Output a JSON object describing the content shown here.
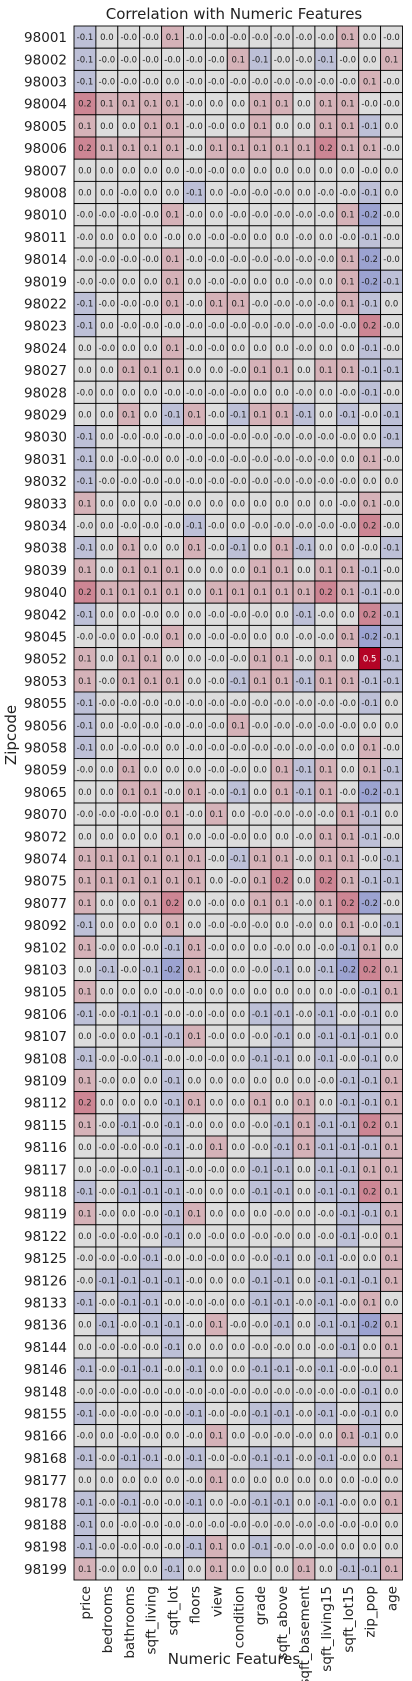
{
  "chart_data": {
    "type": "heatmap",
    "title": "Correlation with Numeric Features",
    "xlabel": "Numeric Features",
    "ylabel": "Zipcode",
    "columns": [
      "price",
      "bedrooms",
      "bathrooms",
      "sqft_living",
      "sqft_lot",
      "floors",
      "view",
      "condition",
      "grade",
      "sqft_above",
      "sqft_basement",
      "sqft_living15",
      "sqft_lot15",
      "zip_pop",
      "age"
    ],
    "rows": [
      "98001",
      "98002",
      "98003",
      "98004",
      "98005",
      "98006",
      "98007",
      "98008",
      "98010",
      "98011",
      "98014",
      "98019",
      "98022",
      "98023",
      "98024",
      "98027",
      "98028",
      "98029",
      "98030",
      "98031",
      "98032",
      "98033",
      "98034",
      "98038",
      "98039",
      "98040",
      "98042",
      "98045",
      "98052",
      "98053",
      "98055",
      "98056",
      "98058",
      "98059",
      "98065",
      "98070",
      "98072",
      "98074",
      "98075",
      "98077",
      "98092",
      "98102",
      "98103",
      "98105",
      "98106",
      "98107",
      "98108",
      "98109",
      "98112",
      "98115",
      "98116",
      "98117",
      "98118",
      "98119",
      "98122",
      "98125",
      "98126",
      "98133",
      "98136",
      "98144",
      "98146",
      "98148",
      "98155",
      "98166",
      "98168",
      "98177",
      "98178",
      "98188",
      "98198",
      "98199"
    ],
    "values": [
      [
        "-0.1",
        "0.0",
        "-0.0",
        "-0.0",
        "0.1",
        "-0.0",
        "-0.0",
        "-0.0",
        "-0.0",
        "-0.0",
        "-0.0",
        "-0.0",
        "0.1",
        "0.0",
        "-0.0"
      ],
      [
        "-0.1",
        "-0.0",
        "-0.0",
        "-0.0",
        "-0.0",
        "-0.0",
        "-0.0",
        "0.1",
        "-0.1",
        "-0.0",
        "-0.0",
        "-0.1",
        "-0.0",
        "0.0",
        "0.1"
      ],
      [
        "-0.1",
        "-0.0",
        "-0.0",
        "-0.0",
        "0.0",
        "-0.0",
        "-0.0",
        "-0.0",
        "-0.0",
        "-0.0",
        "-0.0",
        "-0.0",
        "-0.0",
        "0.1",
        "-0.0"
      ],
      [
        "0.2",
        "0.1",
        "0.1",
        "0.1",
        "0.1",
        "-0.0",
        "0.0",
        "0.0",
        "0.1",
        "0.1",
        "0.0",
        "0.1",
        "0.1",
        "-0.0",
        "-0.0"
      ],
      [
        "0.1",
        "0.0",
        "0.0",
        "0.1",
        "0.1",
        "-0.0",
        "-0.0",
        "0.0",
        "0.1",
        "0.0",
        "0.0",
        "0.1",
        "0.1",
        "-0.1",
        "0.0"
      ],
      [
        "0.2",
        "0.1",
        "0.1",
        "0.1",
        "0.1",
        "-0.0",
        "0.1",
        "0.1",
        "0.1",
        "0.1",
        "0.1",
        "0.2",
        "0.1",
        "0.1",
        "-0.0"
      ],
      [
        "0.0",
        "0.0",
        "0.0",
        "0.0",
        "0.0",
        "-0.0",
        "-0.0",
        "0.0",
        "0.0",
        "0.0",
        "0.0",
        "0.0",
        "0.0",
        "-0.0",
        "0.0"
      ],
      [
        "0.0",
        "0.0",
        "-0.0",
        "0.0",
        "0.0",
        "-0.1",
        "0.0",
        "-0.0",
        "-0.0",
        "-0.0",
        "0.0",
        "-0.0",
        "-0.0",
        "-0.1",
        "0.0"
      ],
      [
        "-0.0",
        "-0.0",
        "-0.0",
        "-0.0",
        "0.1",
        "-0.0",
        "0.0",
        "-0.0",
        "-0.0",
        "-0.0",
        "-0.0",
        "-0.0",
        "0.1",
        "-0.2",
        "-0.0"
      ],
      [
        "-0.0",
        "0.0",
        "0.0",
        "0.0",
        "-0.0",
        "0.0",
        "-0.0",
        "-0.0",
        "0.0",
        "0.0",
        "-0.0",
        "0.0",
        "-0.0",
        "-0.1",
        "-0.0"
      ],
      [
        "-0.0",
        "-0.0",
        "-0.0",
        "-0.0",
        "0.1",
        "-0.0",
        "-0.0",
        "-0.0",
        "-0.0",
        "-0.0",
        "-0.0",
        "-0.0",
        "0.1",
        "-0.2",
        "-0.0"
      ],
      [
        "-0.0",
        "-0.0",
        "0.0",
        "0.0",
        "0.1",
        "0.0",
        "-0.0",
        "-0.0",
        "0.0",
        "0.0",
        "-0.0",
        "0.0",
        "0.1",
        "-0.2",
        "-0.1"
      ],
      [
        "-0.1",
        "-0.0",
        "-0.0",
        "-0.0",
        "0.1",
        "-0.0",
        "0.1",
        "0.1",
        "-0.0",
        "-0.0",
        "-0.0",
        "-0.0",
        "0.1",
        "-0.1",
        "0.0"
      ],
      [
        "-0.1",
        "0.0",
        "-0.0",
        "-0.0",
        "-0.0",
        "-0.0",
        "-0.0",
        "-0.0",
        "-0.0",
        "-0.0",
        "-0.0",
        "-0.0",
        "-0.0",
        "0.2",
        "-0.0"
      ],
      [
        "0.0",
        "-0.0",
        "0.0",
        "0.0",
        "0.1",
        "-0.0",
        "-0.0",
        "0.0",
        "0.0",
        "0.0",
        "-0.0",
        "0.0",
        "0.0",
        "-0.1",
        "-0.0"
      ],
      [
        "0.0",
        "0.0",
        "0.1",
        "0.1",
        "0.1",
        "0.0",
        "0.0",
        "-0.0",
        "0.1",
        "0.1",
        "0.0",
        "0.1",
        "0.1",
        "-0.1",
        "-0.1"
      ],
      [
        "-0.0",
        "0.0",
        "0.0",
        "0.0",
        "-0.0",
        "-0.0",
        "-0.0",
        "-0.0",
        "0.0",
        "0.0",
        "-0.0",
        "0.0",
        "-0.0",
        "-0.1",
        "-0.0"
      ],
      [
        "0.0",
        "0.0",
        "0.1",
        "0.0",
        "-0.1",
        "0.1",
        "-0.0",
        "-0.1",
        "0.1",
        "0.1",
        "-0.1",
        "0.0",
        "-0.1",
        "-0.0",
        "-0.1"
      ],
      [
        "-0.1",
        "0.0",
        "-0.0",
        "-0.0",
        "-0.0",
        "-0.0",
        "-0.0",
        "-0.0",
        "-0.0",
        "-0.0",
        "-0.0",
        "-0.0",
        "-0.0",
        "0.0",
        "-0.1"
      ],
      [
        "-0.1",
        "0.0",
        "-0.0",
        "-0.0",
        "0.0",
        "-0.0",
        "-0.0",
        "-0.0",
        "-0.0",
        "-0.0",
        "-0.0",
        "-0.0",
        "0.0",
        "0.1",
        "-0.0"
      ],
      [
        "-0.1",
        "-0.0",
        "-0.0",
        "-0.0",
        "-0.0",
        "-0.0",
        "-0.0",
        "-0.0",
        "-0.0",
        "-0.0",
        "-0.0",
        "-0.0",
        "-0.0",
        "0.0",
        "0.0"
      ],
      [
        "0.1",
        "0.0",
        "0.0",
        "0.0",
        "-0.0",
        "0.0",
        "0.0",
        "0.0",
        "0.0",
        "0.0",
        "0.0",
        "0.0",
        "-0.0",
        "0.1",
        "-0.0"
      ],
      [
        "-0.0",
        "0.0",
        "-0.0",
        "-0.0",
        "-0.0",
        "-0.1",
        "-0.0",
        "0.0",
        "-0.0",
        "-0.0",
        "-0.0",
        "-0.0",
        "-0.0",
        "0.2",
        "-0.0"
      ],
      [
        "-0.1",
        "0.0",
        "0.1",
        "0.0",
        "0.0",
        "0.1",
        "-0.0",
        "-0.1",
        "0.0",
        "0.1",
        "-0.1",
        "0.0",
        "0.0",
        "-0.0",
        "-0.1"
      ],
      [
        "0.1",
        "0.0",
        "0.1",
        "0.1",
        "0.1",
        "0.0",
        "0.0",
        "0.0",
        "0.1",
        "0.1",
        "0.0",
        "0.1",
        "0.1",
        "-0.1",
        "-0.0"
      ],
      [
        "0.2",
        "0.1",
        "0.1",
        "0.1",
        "0.1",
        "0.0",
        "0.1",
        "0.1",
        "0.1",
        "0.1",
        "0.1",
        "0.2",
        "0.1",
        "-0.1",
        "-0.0"
      ],
      [
        "-0.1",
        "0.0",
        "0.0",
        "-0.0",
        "0.0",
        "0.0",
        "-0.0",
        "-0.0",
        "-0.0",
        "0.0",
        "-0.1",
        "-0.0",
        "0.0",
        "0.2",
        "-0.1"
      ],
      [
        "-0.0",
        "-0.0",
        "0.0",
        "-0.0",
        "0.1",
        "0.0",
        "-0.0",
        "-0.0",
        "0.0",
        "0.0",
        "-0.0",
        "-0.0",
        "0.1",
        "-0.2",
        "-0.1"
      ],
      [
        "0.1",
        "0.0",
        "0.1",
        "0.1",
        "0.0",
        "0.0",
        "-0.0",
        "-0.0",
        "0.1",
        "0.1",
        "-0.0",
        "0.1",
        "0.0",
        "0.5",
        "-0.1"
      ],
      [
        "0.1",
        "-0.0",
        "0.1",
        "0.1",
        "0.1",
        "0.0",
        "-0.0",
        "-0.1",
        "0.1",
        "0.1",
        "-0.1",
        "0.1",
        "0.1",
        "-0.1",
        "-0.1"
      ],
      [
        "-0.1",
        "-0.0",
        "-0.0",
        "-0.0",
        "-0.0",
        "-0.0",
        "-0.0",
        "-0.0",
        "-0.0",
        "-0.0",
        "-0.0",
        "-0.0",
        "-0.0",
        "-0.1",
        "0.0"
      ],
      [
        "-0.1",
        "0.0",
        "-0.0",
        "-0.0",
        "-0.0",
        "-0.0",
        "-0.0",
        "0.1",
        "-0.0",
        "-0.0",
        "-0.0",
        "-0.0",
        "-0.0",
        "0.0",
        "0.0"
      ],
      [
        "-0.1",
        "0.0",
        "-0.0",
        "-0.0",
        "0.0",
        "-0.0",
        "-0.0",
        "-0.0",
        "-0.0",
        "-0.0",
        "-0.0",
        "-0.0",
        "0.0",
        "0.1",
        "-0.0"
      ],
      [
        "-0.0",
        "0.0",
        "0.1",
        "0.0",
        "0.0",
        "0.0",
        "-0.0",
        "-0.0",
        "0.0",
        "0.1",
        "-0.1",
        "0.1",
        "0.0",
        "0.1",
        "-0.1"
      ],
      [
        "0.0",
        "0.0",
        "0.1",
        "0.1",
        "-0.0",
        "0.1",
        "-0.0",
        "-0.1",
        "0.0",
        "0.1",
        "-0.1",
        "0.1",
        "-0.0",
        "-0.2",
        "-0.1"
      ],
      [
        "-0.0",
        "-0.0",
        "-0.0",
        "-0.0",
        "0.1",
        "-0.0",
        "0.1",
        "0.0",
        "-0.0",
        "-0.0",
        "-0.0",
        "-0.0",
        "0.1",
        "-0.1",
        "0.0"
      ],
      [
        "0.0",
        "0.0",
        "0.0",
        "0.0",
        "0.1",
        "0.0",
        "-0.0",
        "-0.0",
        "0.0",
        "0.0",
        "-0.0",
        "0.1",
        "0.1",
        "-0.1",
        "-0.0"
      ],
      [
        "0.1",
        "0.1",
        "0.1",
        "0.1",
        "0.1",
        "0.1",
        "-0.0",
        "-0.1",
        "0.1",
        "0.1",
        "-0.0",
        "0.1",
        "0.1",
        "-0.0",
        "-0.1"
      ],
      [
        "0.1",
        "0.1",
        "0.1",
        "0.1",
        "0.1",
        "0.1",
        "0.0",
        "-0.0",
        "0.1",
        "0.2",
        "0.0",
        "0.2",
        "0.1",
        "-0.1",
        "-0.1"
      ],
      [
        "0.1",
        "0.0",
        "0.0",
        "0.1",
        "0.2",
        "0.0",
        "-0.0",
        "0.0",
        "0.1",
        "0.1",
        "-0.0",
        "0.1",
        "0.2",
        "-0.2",
        "-0.0"
      ],
      [
        "-0.1",
        "0.0",
        "0.0",
        "0.0",
        "0.1",
        "0.0",
        "-0.0",
        "-0.0",
        "-0.0",
        "0.0",
        "-0.0",
        "0.0",
        "0.1",
        "-0.0",
        "-0.1"
      ],
      [
        "0.1",
        "-0.0",
        "0.0",
        "-0.0",
        "-0.1",
        "0.1",
        "-0.0",
        "0.0",
        "0.0",
        "-0.0",
        "0.0",
        "-0.0",
        "-0.1",
        "0.1",
        "0.0"
      ],
      [
        "0.0",
        "-0.1",
        "-0.0",
        "-0.1",
        "-0.2",
        "0.1",
        "-0.0",
        "0.0",
        "-0.0",
        "-0.1",
        "0.0",
        "-0.1",
        "-0.2",
        "0.2",
        "0.1"
      ],
      [
        "0.1",
        "0.0",
        "0.0",
        "0.0",
        "-0.0",
        "-0.0",
        "0.0",
        "0.0",
        "0.0",
        "0.0",
        "0.0",
        "0.0",
        "-0.0",
        "-0.1",
        "0.1"
      ],
      [
        "-0.1",
        "-0.0",
        "-0.1",
        "-0.1",
        "-0.0",
        "-0.0",
        "-0.0",
        "0.0",
        "-0.1",
        "-0.1",
        "-0.0",
        "-0.1",
        "-0.0",
        "-0.1",
        "0.0"
      ],
      [
        "0.0",
        "-0.0",
        "0.0",
        "-0.1",
        "-0.1",
        "0.1",
        "-0.0",
        "0.0",
        "-0.0",
        "-0.1",
        "0.0",
        "-0.1",
        "-0.1",
        "-0.1",
        "0.0"
      ],
      [
        "-0.1",
        "-0.0",
        "-0.0",
        "-0.1",
        "-0.0",
        "-0.0",
        "-0.0",
        "0.0",
        "-0.1",
        "-0.1",
        "0.0",
        "-0.1",
        "-0.0",
        "-0.1",
        "0.0"
      ],
      [
        "0.1",
        "-0.0",
        "0.0",
        "0.0",
        "-0.1",
        "0.0",
        "0.0",
        "0.0",
        "0.0",
        "0.0",
        "0.0",
        "-0.0",
        "-0.1",
        "-0.1",
        "0.1"
      ],
      [
        "0.2",
        "0.0",
        "0.0",
        "0.0",
        "-0.1",
        "0.1",
        "0.0",
        "0.0",
        "0.1",
        "0.0",
        "0.1",
        "0.0",
        "-0.1",
        "-0.1",
        "0.1"
      ],
      [
        "0.1",
        "-0.0",
        "-0.1",
        "-0.0",
        "-0.1",
        "-0.0",
        "0.0",
        "0.0",
        "-0.0",
        "-0.1",
        "0.1",
        "-0.1",
        "-0.1",
        "0.2",
        "0.1"
      ],
      [
        "0.0",
        "-0.0",
        "-0.0",
        "-0.0",
        "-0.1",
        "-0.0",
        "0.1",
        "0.0",
        "-0.0",
        "-0.1",
        "0.1",
        "-0.1",
        "-0.1",
        "-0.1",
        "0.1"
      ],
      [
        "0.0",
        "-0.0",
        "-0.0",
        "-0.1",
        "-0.1",
        "-0.0",
        "-0.0",
        "0.0",
        "-0.1",
        "-0.1",
        "0.0",
        "-0.1",
        "-0.1",
        "0.1",
        "0.1"
      ],
      [
        "-0.1",
        "-0.0",
        "-0.1",
        "-0.1",
        "-0.1",
        "-0.0",
        "0.0",
        "0.0",
        "-0.1",
        "-0.1",
        "0.0",
        "-0.1",
        "-0.1",
        "0.2",
        "0.1"
      ],
      [
        "0.1",
        "-0.0",
        "0.0",
        "-0.0",
        "-0.1",
        "0.1",
        "0.0",
        "0.0",
        "0.0",
        "-0.0",
        "0.0",
        "-0.0",
        "-0.1",
        "-0.1",
        "0.1"
      ],
      [
        "0.0",
        "-0.0",
        "-0.0",
        "-0.0",
        "-0.1",
        "0.0",
        "-0.0",
        "0.0",
        "-0.0",
        "-0.0",
        "0.0",
        "-0.0",
        "-0.1",
        "-0.0",
        "0.1"
      ],
      [
        "-0.0",
        "-0.0",
        "-0.0",
        "-0.1",
        "-0.0",
        "-0.0",
        "-0.0",
        "0.0",
        "-0.0",
        "-0.1",
        "0.0",
        "-0.1",
        "-0.0",
        "0.0",
        "0.1"
      ],
      [
        "-0.0",
        "-0.1",
        "-0.1",
        "-0.1",
        "-0.1",
        "-0.0",
        "0.0",
        "0.0",
        "-0.1",
        "-0.1",
        "0.0",
        "-0.1",
        "-0.1",
        "-0.1",
        "0.1"
      ],
      [
        "-0.1",
        "-0.0",
        "-0.1",
        "-0.1",
        "-0.0",
        "-0.0",
        "-0.0",
        "0.0",
        "-0.1",
        "-0.1",
        "-0.0",
        "-0.1",
        "-0.0",
        "0.1",
        "0.0"
      ],
      [
        "0.0",
        "-0.1",
        "-0.0",
        "-0.1",
        "-0.1",
        "-0.0",
        "0.1",
        "-0.0",
        "-0.0",
        "-0.1",
        "0.0",
        "-0.1",
        "-0.1",
        "-0.2",
        "0.1"
      ],
      [
        "0.0",
        "-0.0",
        "-0.0",
        "-0.0",
        "-0.1",
        "0.0",
        "0.0",
        "0.0",
        "-0.0",
        "-0.0",
        "0.0",
        "-0.0",
        "-0.1",
        "0.0",
        "0.1"
      ],
      [
        "-0.1",
        "-0.0",
        "-0.1",
        "-0.1",
        "-0.0",
        "-0.1",
        "0.0",
        "0.0",
        "-0.1",
        "-0.1",
        "-0.0",
        "-0.1",
        "-0.0",
        "-0.0",
        "0.1"
      ],
      [
        "-0.0",
        "-0.0",
        "-0.0",
        "-0.0",
        "-0.0",
        "-0.0",
        "-0.0",
        "-0.0",
        "-0.0",
        "-0.0",
        "-0.0",
        "-0.0",
        "-0.0",
        "-0.1",
        "0.0"
      ],
      [
        "-0.1",
        "-0.0",
        "-0.0",
        "-0.0",
        "-0.0",
        "-0.1",
        "-0.0",
        "-0.0",
        "-0.1",
        "-0.1",
        "-0.0",
        "-0.1",
        "-0.0",
        "-0.1",
        "0.0"
      ],
      [
        "-0.0",
        "0.0",
        "-0.0",
        "-0.0",
        "0.0",
        "-0.0",
        "0.1",
        "0.0",
        "-0.0",
        "-0.0",
        "-0.0",
        "0.0",
        "0.1",
        "-0.1",
        "0.0"
      ],
      [
        "-0.1",
        "-0.0",
        "-0.1",
        "-0.1",
        "-0.0",
        "-0.1",
        "-0.0",
        "-0.0",
        "-0.1",
        "-0.1",
        "-0.0",
        "-0.1",
        "-0.0",
        "0.0",
        "0.1"
      ],
      [
        "0.0",
        "0.0",
        "0.0",
        "0.0",
        "0.0",
        "-0.0",
        "0.1",
        "0.0",
        "0.0",
        "0.0",
        "0.0",
        "0.0",
        "0.0",
        "-0.0",
        "0.0"
      ],
      [
        "-0.1",
        "-0.0",
        "-0.1",
        "-0.0",
        "-0.0",
        "-0.1",
        "0.0",
        "-0.0",
        "-0.1",
        "-0.1",
        "0.0",
        "-0.1",
        "-0.0",
        "0.0",
        "0.1"
      ],
      [
        "-0.1",
        "0.0",
        "-0.0",
        "-0.0",
        "-0.0",
        "-0.0",
        "-0.0",
        "-0.0",
        "-0.0",
        "-0.0",
        "-0.0",
        "-0.0",
        "-0.0",
        "-0.0",
        "0.0"
      ],
      [
        "-0.1",
        "-0.0",
        "-0.0",
        "-0.0",
        "-0.0",
        "-0.1",
        "0.1",
        "0.0",
        "-0.1",
        "-0.0",
        "-0.0",
        "-0.0",
        "0.0",
        "0.0",
        "0.0"
      ],
      [
        "0.1",
        "-0.0",
        "0.0",
        "0.0",
        "-0.1",
        "0.0",
        "0.1",
        "0.0",
        "0.0",
        "0.0",
        "0.1",
        "0.0",
        "-0.1",
        "-0.1",
        "0.1"
      ]
    ],
    "colors": {
      "negative": "#3b4cc0",
      "neutral": "#dddddd",
      "positive": "#b40426",
      "grid": "#000000"
    }
  }
}
